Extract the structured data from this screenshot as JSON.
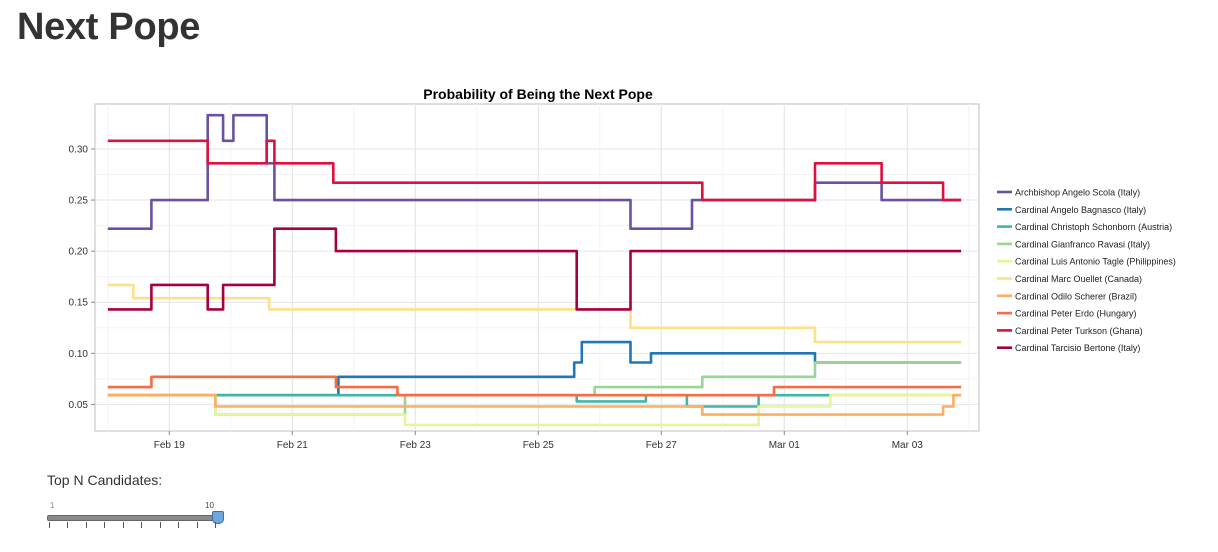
{
  "page": {
    "title": "Next Pope"
  },
  "controls": {
    "top_n": {
      "label": "Top N Candidates:",
      "min": "1",
      "max": "10",
      "value": 10
    }
  },
  "chart_data": {
    "type": "line",
    "title": "Probability of Being the Next Pope",
    "xlabel": "",
    "ylabel": "",
    "xlim": [
      "2013-02-17T19:00",
      "2013-03-04T04:00"
    ],
    "ylim": [
      0.024,
      0.344
    ],
    "x_ticks": [
      "Feb 19",
      "Feb 21",
      "Feb 23",
      "Feb 25",
      "Feb 27",
      "Mar 01",
      "Mar 03"
    ],
    "x_tick_dates": [
      "2013-02-19",
      "2013-02-21",
      "2013-02-23",
      "2013-02-25",
      "2013-02-27",
      "2013-03-01",
      "2013-03-03"
    ],
    "y_ticks": [
      "0.05",
      "0.10",
      "0.15",
      "0.20",
      "0.25",
      "0.30"
    ],
    "y_tick_values": [
      0.05,
      0.1,
      0.15,
      0.2,
      0.25,
      0.3
    ],
    "grid": true,
    "legend_position": "right",
    "series": [
      {
        "name": "Archbishop Angelo Scola (Italy)",
        "color": "#6a51a3",
        "points": [
          [
            "2013-02-18T00:00",
            0.222
          ],
          [
            "2013-02-18T17:00",
            0.222
          ],
          [
            "2013-02-18T17:00",
            0.25
          ],
          [
            "2013-02-19T15:00",
            0.25
          ],
          [
            "2013-02-19T15:00",
            0.333
          ],
          [
            "2013-02-19T21:00",
            0.333
          ],
          [
            "2013-02-19T21:00",
            0.308
          ],
          [
            "2013-02-20T01:00",
            0.308
          ],
          [
            "2013-02-20T01:00",
            0.333
          ],
          [
            "2013-02-20T14:00",
            0.333
          ],
          [
            "2013-02-20T14:00",
            0.286
          ],
          [
            "2013-02-20T17:00",
            0.286
          ],
          [
            "2013-02-20T17:00",
            0.25
          ],
          [
            "2013-02-26T12:00",
            0.25
          ],
          [
            "2013-02-26T12:00",
            0.222
          ],
          [
            "2013-02-27T12:00",
            0.222
          ],
          [
            "2013-02-27T12:00",
            0.25
          ],
          [
            "2013-03-01T12:00",
            0.25
          ],
          [
            "2013-03-01T12:00",
            0.267
          ],
          [
            "2013-03-02T14:00",
            0.267
          ],
          [
            "2013-03-02T14:00",
            0.25
          ],
          [
            "2013-03-03T21:00",
            0.25
          ]
        ]
      },
      {
        "name": "Cardinal Angelo Bagnasco (Italy)",
        "color": "#1f78b4",
        "points": [
          [
            "2013-02-18T00:00",
            0.059
          ],
          [
            "2013-02-21T18:00",
            0.059
          ],
          [
            "2013-02-21T18:00",
            0.077
          ],
          [
            "2013-02-25T14:00",
            0.077
          ],
          [
            "2013-02-25T14:00",
            0.091
          ],
          [
            "2013-02-25T17:00",
            0.091
          ],
          [
            "2013-02-25T17:00",
            0.111
          ],
          [
            "2013-02-26T12:00",
            0.111
          ],
          [
            "2013-02-26T12:00",
            0.091
          ],
          [
            "2013-02-26T20:00",
            0.091
          ],
          [
            "2013-02-26T20:00",
            0.1
          ],
          [
            "2013-03-01T12:00",
            0.1
          ],
          [
            "2013-03-01T12:00",
            0.091
          ],
          [
            "2013-03-03T21:00",
            0.091
          ]
        ]
      },
      {
        "name": "Cardinal Christoph Schonborn (Austria)",
        "color": "#41b6a6",
        "points": [
          [
            "2013-02-18T00:00",
            0.059
          ],
          [
            "2013-02-25T15:00",
            0.059
          ],
          [
            "2013-02-25T15:00",
            0.053
          ],
          [
            "2013-02-26T18:00",
            0.053
          ],
          [
            "2013-02-26T18:00",
            0.059
          ],
          [
            "2013-02-27T10:00",
            0.059
          ],
          [
            "2013-02-27T10:00",
            0.048
          ],
          [
            "2013-02-28T14:00",
            0.048
          ],
          [
            "2013-02-28T14:00",
            0.059
          ],
          [
            "2013-03-01T18:00",
            0.059
          ],
          [
            "2013-03-01T18:00",
            0.059
          ],
          [
            "2013-03-03T21:00",
            0.059
          ]
        ]
      },
      {
        "name": "Cardinal Gianfranco Ravasi (Italy)",
        "color": "#99d594",
        "points": [
          [
            "2013-02-18T00:00",
            0.059
          ],
          [
            "2013-02-19T18:00",
            0.059
          ],
          [
            "2013-02-19T18:00",
            0.04
          ],
          [
            "2013-02-22T20:00",
            0.04
          ],
          [
            "2013-02-22T20:00",
            0.059
          ],
          [
            "2013-02-25T22:00",
            0.059
          ],
          [
            "2013-02-25T22:00",
            0.067
          ],
          [
            "2013-02-27T16:00",
            0.067
          ],
          [
            "2013-02-27T16:00",
            0.077
          ],
          [
            "2013-03-01T12:00",
            0.077
          ],
          [
            "2013-03-01T12:00",
            0.091
          ],
          [
            "2013-03-03T21:00",
            0.091
          ]
        ]
      },
      {
        "name": "Cardinal Luis Antonio Tagle (Philippines)",
        "color": "#e6f598",
        "points": [
          [
            "2013-02-18T00:00",
            0.059
          ],
          [
            "2013-02-19T18:00",
            0.059
          ],
          [
            "2013-02-19T18:00",
            0.04
          ],
          [
            "2013-02-22T20:00",
            0.04
          ],
          [
            "2013-02-22T20:00",
            0.03
          ],
          [
            "2013-02-28T14:00",
            0.03
          ],
          [
            "2013-02-28T14:00",
            0.048
          ],
          [
            "2013-03-01T18:00",
            0.048
          ],
          [
            "2013-03-01T18:00",
            0.059
          ],
          [
            "2013-03-03T21:00",
            0.059
          ]
        ]
      },
      {
        "name": "Cardinal Marc Ouellet (Canada)",
        "color": "#fee08b",
        "points": [
          [
            "2013-02-18T00:00",
            0.167
          ],
          [
            "2013-02-18T10:00",
            0.167
          ],
          [
            "2013-02-18T10:00",
            0.154
          ],
          [
            "2013-02-20T15:00",
            0.154
          ],
          [
            "2013-02-20T15:00",
            0.143
          ],
          [
            "2013-02-26T12:00",
            0.143
          ],
          [
            "2013-02-26T12:00",
            0.125
          ],
          [
            "2013-03-01T12:00",
            0.125
          ],
          [
            "2013-03-01T12:00",
            0.111
          ],
          [
            "2013-03-03T21:00",
            0.111
          ]
        ]
      },
      {
        "name": "Cardinal Odilo Scherer (Brazil)",
        "color": "#fdae61",
        "points": [
          [
            "2013-02-18T00:00",
            0.059
          ],
          [
            "2013-02-19T18:00",
            0.059
          ],
          [
            "2013-02-19T18:00",
            0.048
          ],
          [
            "2013-02-27T16:00",
            0.048
          ],
          [
            "2013-02-27T16:00",
            0.04
          ],
          [
            "2013-03-03T14:00",
            0.04
          ],
          [
            "2013-03-03T14:00",
            0.048
          ],
          [
            "2013-03-03T18:00",
            0.048
          ],
          [
            "2013-03-03T18:00",
            0.059
          ],
          [
            "2013-03-03T21:00",
            0.059
          ]
        ]
      },
      {
        "name": "Cardinal Peter Erdo (Hungary)",
        "color": "#f46d43",
        "points": [
          [
            "2013-02-18T00:00",
            0.067
          ],
          [
            "2013-02-18T17:00",
            0.067
          ],
          [
            "2013-02-18T17:00",
            0.077
          ],
          [
            "2013-02-21T17:00",
            0.077
          ],
          [
            "2013-02-21T17:00",
            0.067
          ],
          [
            "2013-02-22T17:00",
            0.067
          ],
          [
            "2013-02-22T17:00",
            0.059
          ],
          [
            "2013-02-28T20:00",
            0.059
          ],
          [
            "2013-02-28T20:00",
            0.067
          ],
          [
            "2013-03-03T21:00",
            0.067
          ]
        ]
      },
      {
        "name": "Cardinal Peter Turkson (Ghana)",
        "color": "#e0103c",
        "points": [
          [
            "2013-02-18T00:00",
            0.308
          ],
          [
            "2013-02-19T15:00",
            0.308
          ],
          [
            "2013-02-19T15:00",
            0.286
          ],
          [
            "2013-02-20T14:00",
            0.286
          ],
          [
            "2013-02-20T14:00",
            0.308
          ],
          [
            "2013-02-20T17:00",
            0.308
          ],
          [
            "2013-02-20T17:00",
            0.286
          ],
          [
            "2013-02-21T16:00",
            0.286
          ],
          [
            "2013-02-21T16:00",
            0.267
          ],
          [
            "2013-02-27T16:00",
            0.267
          ],
          [
            "2013-02-27T16:00",
            0.25
          ],
          [
            "2013-03-01T12:00",
            0.25
          ],
          [
            "2013-03-01T12:00",
            0.286
          ],
          [
            "2013-03-02T14:00",
            0.286
          ],
          [
            "2013-03-02T14:00",
            0.267
          ],
          [
            "2013-03-03T14:00",
            0.267
          ],
          [
            "2013-03-03T14:00",
            0.25
          ],
          [
            "2013-03-03T21:00",
            0.25
          ]
        ]
      },
      {
        "name": "Cardinal Tarcisio Bertone (Italy)",
        "color": "#a50041",
        "points": [
          [
            "2013-02-18T00:00",
            0.143
          ],
          [
            "2013-02-18T17:00",
            0.143
          ],
          [
            "2013-02-18T17:00",
            0.167
          ],
          [
            "2013-02-19T15:00",
            0.167
          ],
          [
            "2013-02-19T15:00",
            0.143
          ],
          [
            "2013-02-19T21:00",
            0.143
          ],
          [
            "2013-02-19T21:00",
            0.167
          ],
          [
            "2013-02-20T17:00",
            0.167
          ],
          [
            "2013-02-20T17:00",
            0.222
          ],
          [
            "2013-02-21T17:00",
            0.222
          ],
          [
            "2013-02-21T17:00",
            0.2
          ],
          [
            "2013-02-25T15:00",
            0.2
          ],
          [
            "2013-02-25T15:00",
            0.143
          ],
          [
            "2013-02-26T12:00",
            0.143
          ],
          [
            "2013-02-26T12:00",
            0.2
          ],
          [
            "2013-03-03T21:00",
            0.2
          ]
        ]
      }
    ]
  }
}
